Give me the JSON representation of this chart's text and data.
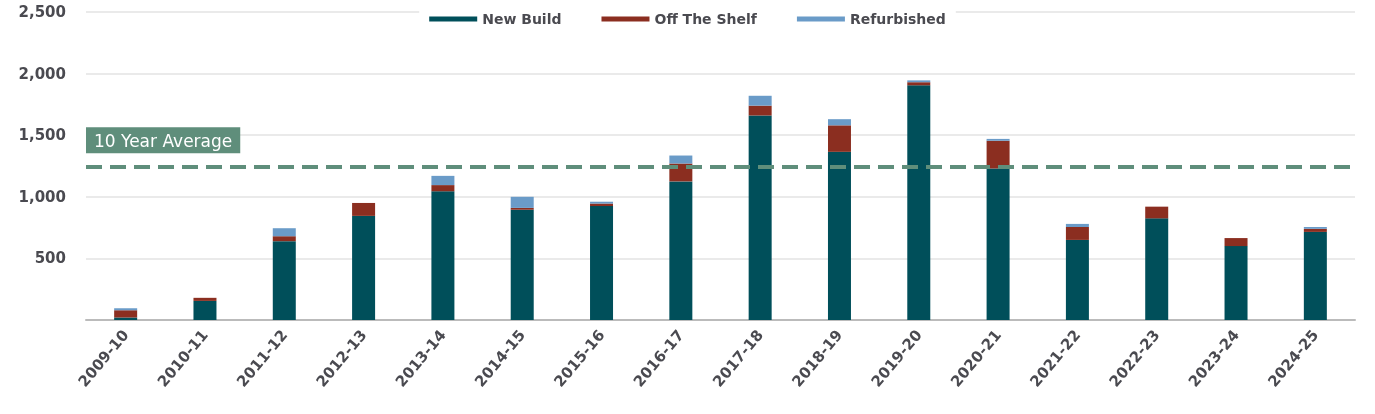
{
  "chart_data": {
    "type": "bar",
    "stacked": true,
    "categories": [
      "2009-10",
      "2010-11",
      "2011-12",
      "2012-13",
      "2013-14",
      "2014-15",
      "2015-16",
      "2016-17",
      "2017-18",
      "2018-19",
      "2019-20",
      "2020-21",
      "2021-22",
      "2022-23",
      "2023-24",
      "2024-25"
    ],
    "series": [
      {
        "name": "New Build",
        "color": "#004f5a",
        "values": [
          20,
          155,
          640,
          845,
          1045,
          895,
          925,
          1125,
          1660,
          1365,
          1905,
          1230,
          650,
          825,
          600,
          715
        ]
      },
      {
        "name": "Off The Shelf",
        "color": "#8b2e20",
        "values": [
          60,
          25,
          40,
          105,
          50,
          15,
          20,
          145,
          80,
          215,
          25,
          225,
          105,
          95,
          65,
          25
        ]
      },
      {
        "name": "Refurbished",
        "color": "#6a9bc8",
        "values": [
          15,
          null,
          65,
          null,
          75,
          90,
          15,
          65,
          80,
          50,
          15,
          15,
          25,
          null,
          null,
          15
        ]
      }
    ],
    "ylim": [
      0,
      2500
    ],
    "yticks": [
      {
        "value": 0,
        "label": null
      },
      500,
      {
        "value": 1000,
        "label": "1,000"
      },
      {
        "value": 1500,
        "label": "1,500"
      },
      {
        "value": 2000,
        "label": "2,000"
      },
      {
        "value": 2500,
        "label": "2,500"
      }
    ],
    "grid": "y",
    "legend": "top",
    "ref_lines": [
      {
        "axis": "y",
        "value": 1240,
        "label": "10 Year Average",
        "color": "#5f8e7b",
        "line_style": "dashed"
      }
    ]
  }
}
